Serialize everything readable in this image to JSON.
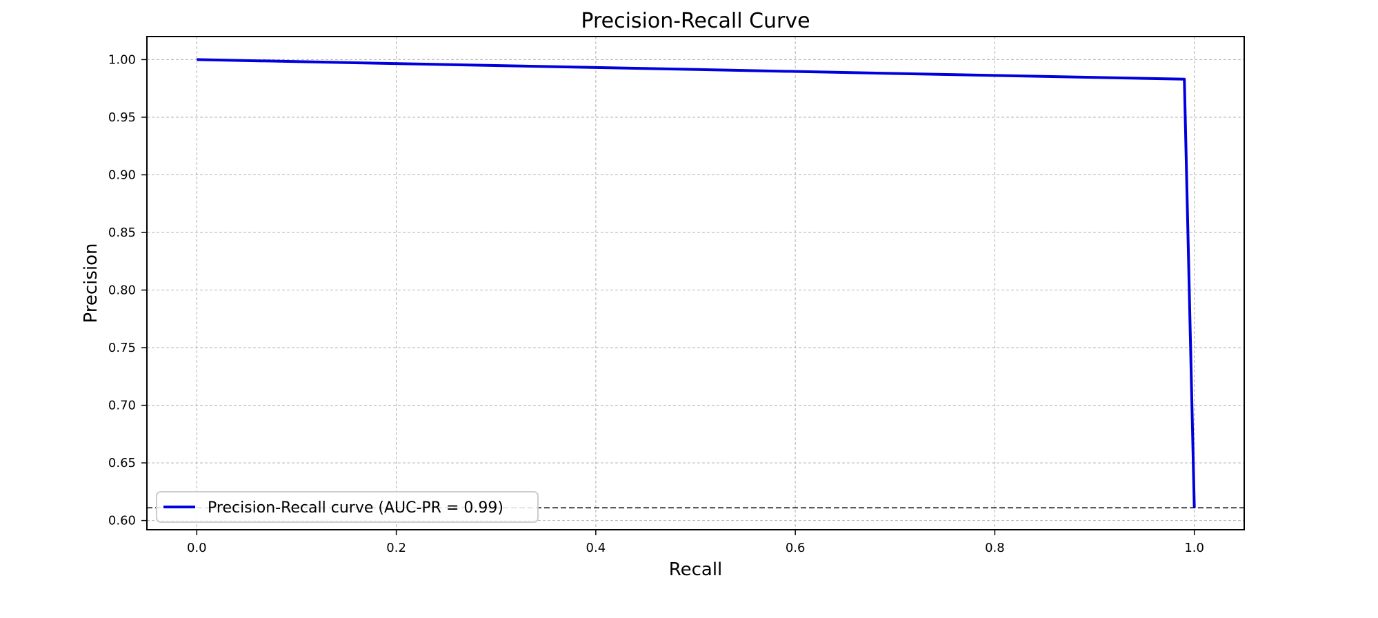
{
  "chart_data": {
    "type": "line",
    "title": "Precision-Recall Curve",
    "xlabel": "Recall",
    "ylabel": "Precision",
    "xlim": [
      -0.05,
      1.05
    ],
    "ylim": [
      0.592,
      1.02
    ],
    "xticks": [
      "0.0",
      "0.2",
      "0.4",
      "0.6",
      "0.8",
      "1.0"
    ],
    "yticks": [
      "0.60",
      "0.65",
      "0.70",
      "0.75",
      "0.80",
      "0.85",
      "0.90",
      "0.95",
      "1.00"
    ],
    "grid": true,
    "legend_position": "lower-left",
    "series": [
      {
        "name": "Precision-Recall curve (AUC-PR = 0.99)",
        "color": "#0000dd",
        "x": [
          0.0,
          0.99,
          1.0
        ],
        "y": [
          1.0,
          0.983,
          0.611
        ]
      }
    ],
    "baseline": {
      "y": 0.611,
      "style": "dashed",
      "color": "#000000"
    }
  }
}
